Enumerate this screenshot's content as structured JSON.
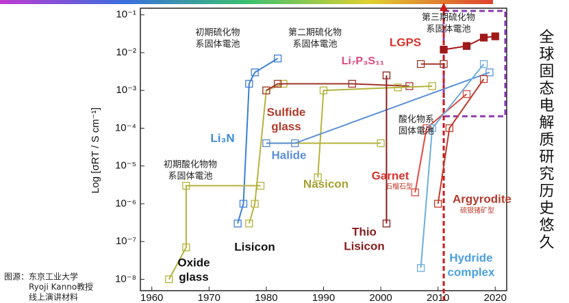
{
  "chart_data": {
    "type": "line",
    "y_label": "Log [σRT / S cm⁻¹]",
    "xlim": [
      1958,
      2022
    ],
    "xticks": [
      1960,
      1970,
      1980,
      1990,
      2000,
      2010,
      2020
    ],
    "ylim": [
      5e-09,
      0.15
    ],
    "log_y": true,
    "yticks": [
      {
        "value": 0.1,
        "label": "10⁻¹"
      },
      {
        "value": 0.01,
        "label": "10⁻²"
      },
      {
        "value": 0.001,
        "label": "10⁻³"
      },
      {
        "value": 0.0001,
        "label": "10⁻⁴"
      },
      {
        "value": 1e-05,
        "label": "10⁻⁵"
      },
      {
        "value": 1e-06,
        "label": "10⁻⁶"
      },
      {
        "value": 1e-07,
        "label": "10⁻⁷"
      },
      {
        "value": 1e-08,
        "label": "10⁻⁸"
      }
    ],
    "series": [
      {
        "color": "#3b7dd8",
        "x": [
          1975,
          1976,
          1977,
          1978,
          1982
        ],
        "values": [
          3e-07,
          1e-06,
          0.0015,
          0.003,
          0.007
        ]
      },
      {
        "color": "#b5b23a",
        "x": [
          1977,
          1978,
          1980,
          1983
        ],
        "values": [
          3e-07,
          1e-06,
          0.001,
          0.0015
        ]
      },
      {
        "color": "#b5b23a",
        "x": [
          1963,
          1966,
          1966,
          1979
        ],
        "values": [
          1e-08,
          7e-08,
          3e-06,
          3e-06
        ]
      },
      {
        "color": "#a0352b",
        "x": [
          1980,
          1982,
          1995,
          2005
        ],
        "values": [
          0.001,
          0.0015,
          0.0015,
          0.0013
        ]
      },
      {
        "color": "#b5b23a",
        "x": [
          1989,
          1990,
          2003,
          2009
        ],
        "values": [
          5e-06,
          0.001,
          0.0012,
          0.0013
        ]
      },
      {
        "color": "#b5b23a",
        "x": [
          1980,
          2000
        ],
        "values": [
          4e-05,
          4e-05
        ]
      },
      {
        "color": "#5a8fd6",
        "x": [
          1980,
          1985,
          2019
        ],
        "values": [
          4e-05,
          4e-05,
          0.003
        ]
      },
      {
        "color": "#8b1a1a",
        "x": [
          2001,
          2001
        ],
        "values": [
          3e-07,
          0.0025
        ]
      },
      {
        "color": "#e0483c",
        "x": [
          2006,
          2008,
          2015
        ],
        "values": [
          2e-06,
          0.0001,
          0.0008
        ]
      },
      {
        "color": "#c0392b",
        "x": [
          2010,
          2012,
          2018
        ],
        "values": [
          1e-06,
          0.0001,
          0.002
        ]
      },
      {
        "color": "#6aaee0",
        "x": [
          2007,
          2009,
          2018
        ],
        "values": [
          2e-08,
          0.0001,
          0.005
        ]
      },
      {
        "color": "#a0352b",
        "x": [
          2007,
          2011
        ],
        "values": [
          0.005,
          0.005
        ]
      },
      {
        "color": "#a01818",
        "x": [
          2011,
          2015,
          2018,
          2020
        ],
        "values": [
          0.012,
          0.015,
          0.025,
          0.027
        ]
      }
    ],
    "annotations": [
      {
        "lines": [
          "初期硫化物",
          "系固体電池"
        ],
        "color": "#222"
      },
      {
        "lines": [
          "第二期硫化物",
          "系固体電池"
        ],
        "color": "#222"
      },
      {
        "lines": [
          "第三期硫化物",
          "系固体電池"
        ],
        "color": "#222"
      },
      {
        "lines": [
          "LGPS"
        ],
        "color": "#d8322c"
      },
      {
        "lines": [
          "Li₇P₃S₁₁"
        ],
        "color": "#e0487a"
      },
      {
        "lines": [
          "Sulfide",
          "glass"
        ],
        "color": "#b33a2a"
      },
      {
        "lines": [
          "Li₃N"
        ],
        "color": "#3b8ad8"
      },
      {
        "lines": [
          "Halide"
        ],
        "color": "#5a8fd6"
      },
      {
        "lines": [
          "酸化物系",
          "固体電池"
        ],
        "color": "#222"
      },
      {
        "lines": [
          "初期酸化物物",
          "系固体電池"
        ],
        "color": "#222"
      },
      {
        "lines": [
          "Nasicon"
        ],
        "color": "#a6a030"
      },
      {
        "lines": [
          "Garnet"
        ],
        "color": "#d8322c"
      },
      {
        "lines": [
          "石榴石型"
        ],
        "color": "#c0392b"
      },
      {
        "lines": [
          "Argyrodite"
        ],
        "color": "#b33a2a"
      },
      {
        "lines": [
          "硫银锗矿型"
        ],
        "color": "#c0392b"
      },
      {
        "lines": [
          "Lisicon"
        ],
        "color": "#111"
      },
      {
        "lines": [
          "Thio",
          "Lisicon"
        ],
        "color": "#8b1a1a"
      },
      {
        "lines": [
          "Oxide",
          "glass"
        ],
        "color": "#111"
      },
      {
        "lines": [
          "Hydride",
          "complex"
        ],
        "color": "#4aa0e0"
      }
    ],
    "side_title": "全球固态电解质研究历史悠久",
    "source": [
      "图源：东京工业大学",
      "Ryoji Kanno教授",
      "线上演讲材料"
    ]
  }
}
